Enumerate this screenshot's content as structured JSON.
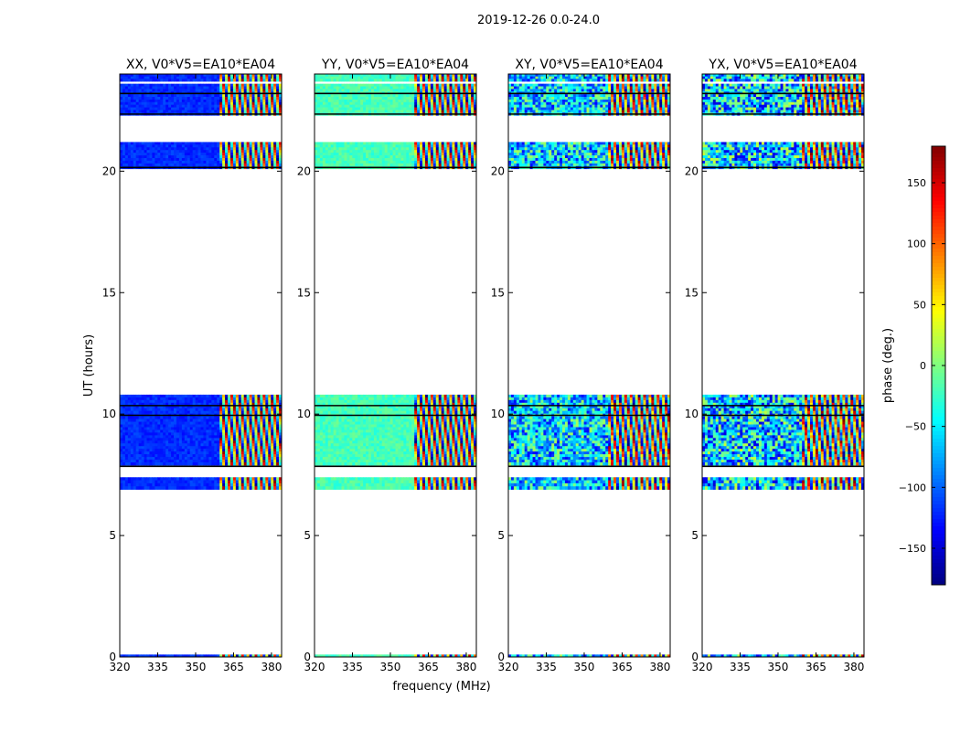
{
  "figure_title": "2019-12-26 0.0-24.0",
  "ylabel": "UT (hours)",
  "xlabel": "frequency (MHz)",
  "colorbar": {
    "label": "phase (deg.)",
    "ticks": [
      150,
      100,
      50,
      0,
      -50,
      -100,
      -150
    ],
    "tick_labels": [
      "150",
      "100",
      "50",
      "0",
      "−50",
      "−100",
      "−150"
    ],
    "range": [
      -180,
      180
    ],
    "colormap": "jet"
  },
  "chart_data": {
    "type": "heatmap",
    "xlim": [
      320,
      384
    ],
    "ylim": [
      0,
      24
    ],
    "x_ticks": [
      320,
      335,
      350,
      365,
      380
    ],
    "x_tick_labels": [
      "320",
      "335",
      "350",
      "365",
      "380"
    ],
    "y_ticks": [
      0,
      5,
      10,
      15,
      20
    ],
    "y_tick_labels": [
      "0",
      "5",
      "10",
      "15",
      "20"
    ],
    "fringe_onset_mhz": 360,
    "data_bands_hours": [
      [
        0.0,
        0.1
      ],
      [
        6.9,
        7.4
      ],
      [
        7.9,
        10.8
      ],
      [
        20.1,
        21.2
      ],
      [
        22.3,
        23.6
      ],
      [
        23.7,
        24.0
      ]
    ],
    "gap_lines_hours": [
      7.85,
      9.95,
      10.35,
      20.15,
      22.35,
      23.2
    ],
    "panels": [
      {
        "title": "XX, V0*V5=EA10*EA04",
        "pol": "XX",
        "base_phase_deg": -120,
        "noise_deg": 25
      },
      {
        "title": "YY, V0*V5=EA10*EA04",
        "pol": "YY",
        "base_phase_deg": -20,
        "noise_deg": 30
      },
      {
        "title": "XY, V0*V5=EA10*EA04",
        "pol": "XY",
        "base_phase_deg": -60,
        "noise_deg": 150
      },
      {
        "title": "YX, V0*V5=EA10*EA04",
        "pol": "YX",
        "base_phase_deg": -60,
        "noise_deg": 180
      }
    ]
  }
}
